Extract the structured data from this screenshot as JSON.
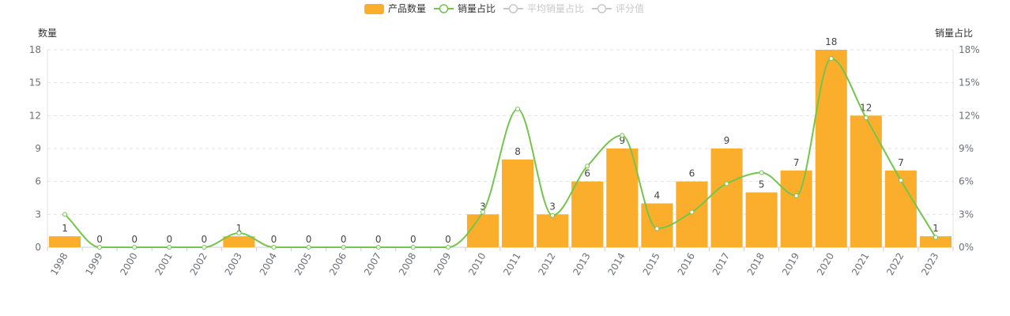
{
  "chart_data": {
    "type": "bar",
    "colors": {
      "bar": "#FBAE2C",
      "line": "#73C54C",
      "disabled": "#c8c8c8"
    },
    "legend": [
      {
        "name": "产品数量",
        "kind": "bar",
        "active": true
      },
      {
        "name": "销量占比",
        "kind": "line",
        "active": true
      },
      {
        "name": "平均销量占比",
        "kind": "line",
        "active": false
      },
      {
        "name": "评分值",
        "kind": "line",
        "active": false
      }
    ],
    "legend_position": "top-center",
    "y_left": {
      "name": "数量",
      "min": 0,
      "max": 18,
      "ticks": [
        "0",
        "3",
        "6",
        "9",
        "12",
        "15",
        "18"
      ]
    },
    "y_right": {
      "name": "销量占比",
      "min": 0,
      "max": 18,
      "ticks": [
        "0%",
        "3%",
        "6%",
        "9%",
        "12%",
        "15%",
        "18%"
      ]
    },
    "grid": "horizontal-dashed",
    "categories": [
      "1998",
      "1999",
      "2000",
      "2001",
      "2002",
      "2003",
      "2004",
      "2005",
      "2006",
      "2007",
      "2008",
      "2009",
      "2010",
      "2011",
      "2012",
      "2013",
      "2014",
      "2015",
      "2016",
      "2017",
      "2018",
      "2019",
      "2020",
      "2021",
      "2022",
      "2023"
    ],
    "series": [
      {
        "name": "产品数量",
        "type": "bar",
        "axis": "left",
        "values": [
          1,
          0,
          0,
          0,
          0,
          1,
          0,
          0,
          0,
          0,
          0,
          0,
          3,
          8,
          3,
          6,
          9,
          4,
          6,
          9,
          5,
          7,
          18,
          12,
          7,
          1
        ]
      },
      {
        "name": "销量占比",
        "type": "line",
        "axis": "right",
        "smooth": true,
        "values": [
          3.0,
          0,
          0,
          0,
          0,
          1.3,
          0,
          0,
          0,
          0,
          0,
          0,
          3.2,
          12.6,
          2.9,
          7.4,
          10.2,
          1.7,
          3.2,
          5.8,
          6.8,
          4.7,
          17.2,
          11.8,
          6.1,
          0.9
        ]
      }
    ]
  }
}
